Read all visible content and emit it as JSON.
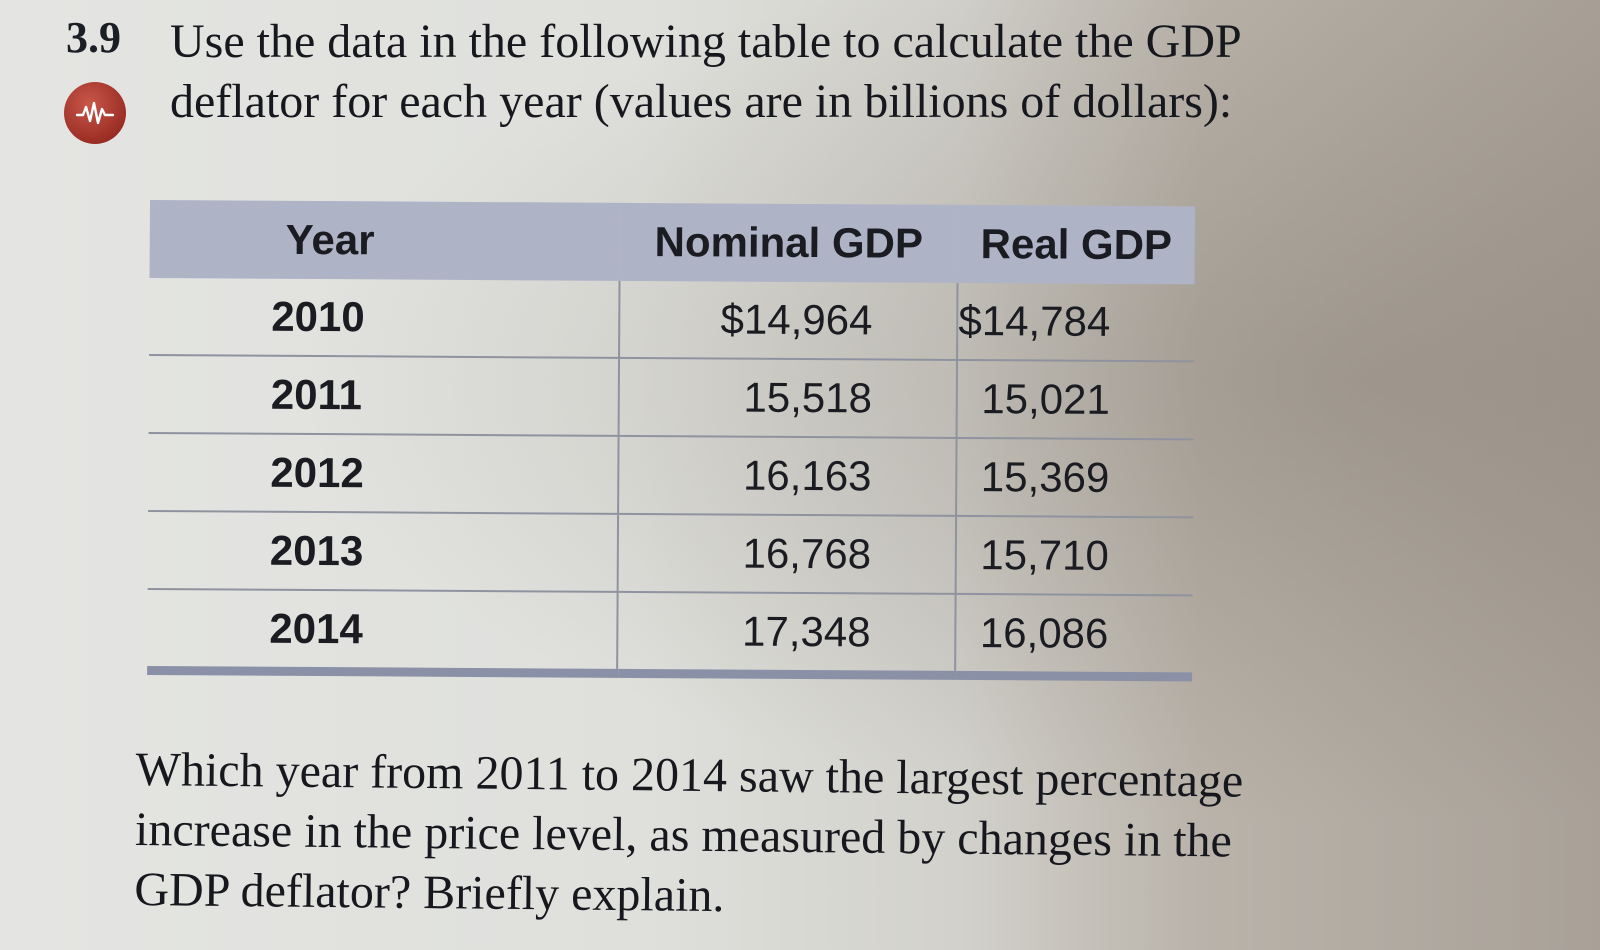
{
  "problem": {
    "number": "3.9",
    "question_line1": "Use the data in the following table to calculate the GDP",
    "question_line2": "deflator for each year (values are in billions of dollars):",
    "icon": "wave-chart-icon",
    "icon_color": "#9b2e25"
  },
  "table": {
    "header_color": "#aeb3c6",
    "columns": [
      "Year",
      "Nominal GDP",
      "Real GDP"
    ],
    "rows": [
      {
        "year": "2010",
        "nominal": "$14,964",
        "real": "$14,784"
      },
      {
        "year": "2011",
        "nominal": "15,518",
        "real": "15,021"
      },
      {
        "year": "2012",
        "nominal": "16,163",
        "real": "15,369"
      },
      {
        "year": "2013",
        "nominal": "16,768",
        "real": "15,710"
      },
      {
        "year": "2014",
        "nominal": "17,348",
        "real": "16,086"
      }
    ]
  },
  "followup": {
    "line1": "Which year from 2011 to 2014 saw the largest percentage",
    "line2": "increase in the price level, as measured by changes in the",
    "line3": "GDP deflator? Briefly explain."
  }
}
